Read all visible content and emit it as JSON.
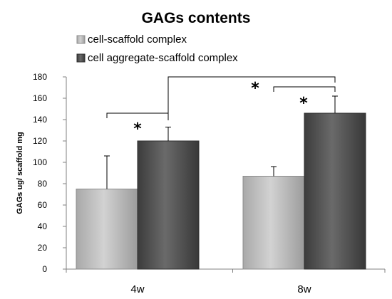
{
  "chart_data": {
    "type": "bar",
    "title": "GAGs contents",
    "ylabel": "GAGs ug/ scaffold mg",
    "xlabel": "",
    "categories": [
      "4w",
      "8w"
    ],
    "ylim": [
      0,
      180
    ],
    "yticks": [
      0,
      20,
      40,
      60,
      80,
      100,
      120,
      140,
      160,
      180
    ],
    "legend_position": "top-left",
    "series": [
      {
        "name": "cell-scaffold complex",
        "color": "#b8b8b8",
        "values": [
          75,
          87
        ],
        "errors": [
          31,
          9
        ]
      },
      {
        "name": "cell aggregate-scaffold complex",
        "color": "#505050",
        "values": [
          120,
          146
        ],
        "errors": [
          13,
          16
        ]
      }
    ],
    "significance": [
      {
        "label": "*",
        "between": "4w: cell-scaffold complex vs cell aggregate-scaffold complex"
      },
      {
        "label": "*",
        "between": "8w: cell-scaffold complex vs cell aggregate-scaffold complex"
      },
      {
        "label": "*",
        "between": "cell aggregate-scaffold complex: 4w vs 8w"
      }
    ]
  }
}
